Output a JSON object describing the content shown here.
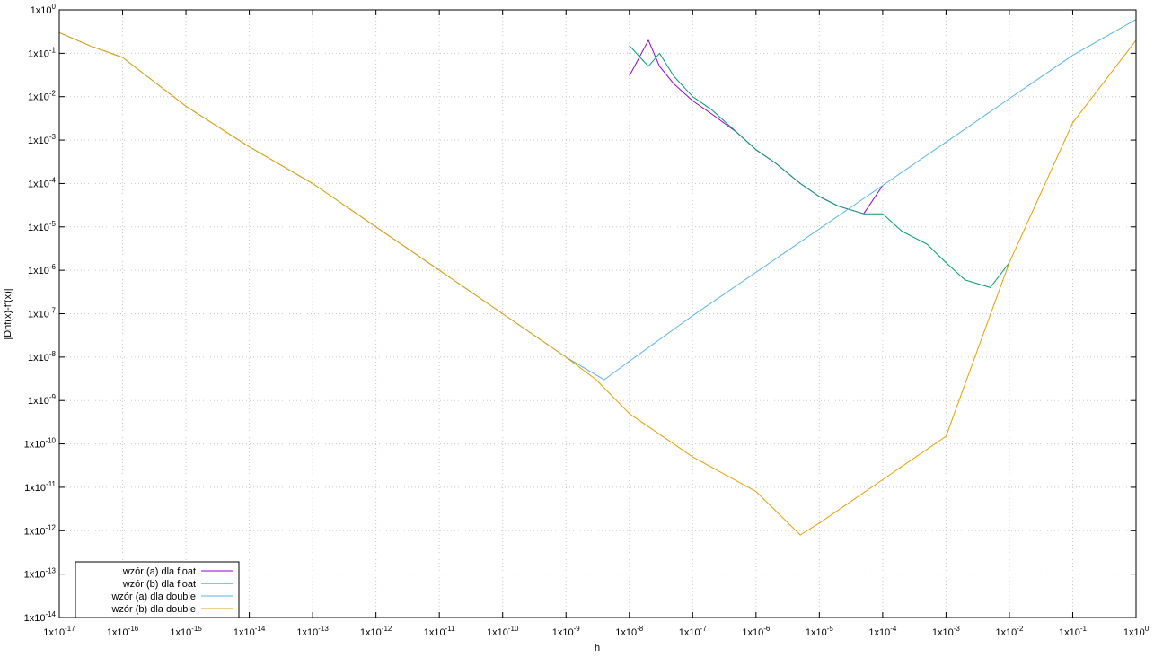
{
  "chart_data": {
    "type": "line",
    "title": "",
    "xlabel": "h",
    "ylabel": "|Dhf(x)-f'(x)|",
    "xscale": "log",
    "yscale": "log",
    "xlim": [
      1e-17,
      1
    ],
    "ylim": [
      1e-14,
      1
    ],
    "grid": true,
    "legend_position": "bottom-left",
    "x_ticks": [
      "1x10-17",
      "1x10-16",
      "1x10-15",
      "1x10-14",
      "1x10-13",
      "1x10-12",
      "1x10-11",
      "1x10-10",
      "1x10-9",
      "1x10-8",
      "1x10-7",
      "1x10-6",
      "1x10-5",
      "1x10-4",
      "1x10-3",
      "1x10-2",
      "1x10-1",
      "1x100"
    ],
    "y_ticks": [
      "1x100",
      "1x10-1",
      "1x10-2",
      "1x10-3",
      "1x10-4",
      "1x10-5",
      "1x10-6",
      "1x10-7",
      "1x10-8",
      "1x10-9",
      "1x10-10",
      "1x10-11",
      "1x10-12",
      "1x10-13",
      "1x10-14"
    ],
    "series": [
      {
        "name": "wzór (a) dla float",
        "color": "#9400d3",
        "x": [
          1e-08,
          2e-08,
          3e-08,
          5e-08,
          1e-07,
          2e-07,
          5e-07,
          1e-06,
          2e-06,
          5e-06,
          1e-05,
          2e-05,
          5e-05,
          0.0001
        ],
        "y": [
          0.03,
          0.2,
          0.05,
          0.02,
          0.008,
          0.004,
          0.0015,
          0.0006,
          0.0003,
          0.0001,
          5e-05,
          3e-05,
          2e-05,
          9e-05
        ]
      },
      {
        "name": "wzór (b) dla float",
        "color": "#009e73",
        "x": [
          1e-08,
          2e-08,
          3e-08,
          5e-08,
          1e-07,
          2e-07,
          5e-07,
          1e-06,
          2e-06,
          5e-06,
          1e-05,
          2e-05,
          5e-05,
          0.0001,
          0.0002,
          0.0005,
          0.001,
          0.002,
          0.005,
          0.01
        ],
        "y": [
          0.15,
          0.05,
          0.1,
          0.03,
          0.01,
          0.005,
          0.0015,
          0.0006,
          0.0003,
          0.0001,
          5e-05,
          3e-05,
          2e-05,
          2e-05,
          8e-06,
          4e-06,
          1.5e-06,
          6e-07,
          4e-07,
          1.5e-06
        ]
      },
      {
        "name": "wzór (a) dla double",
        "color": "#56b4e9",
        "x": [
          1e-17,
          3e-17,
          1e-16,
          1e-15,
          1e-14,
          1e-13,
          1e-12,
          1e-11,
          1e-10,
          1e-09,
          4e-09,
          1e-08,
          1e-07,
          1e-06,
          1e-05,
          0.0001,
          0.001,
          0.01,
          0.1,
          1
        ],
        "y": [
          0.3,
          0.15,
          0.08,
          0.006,
          0.0007,
          0.0001,
          1e-05,
          1e-06,
          1e-07,
          1e-08,
          3e-09,
          8e-09,
          9e-08,
          9e-07,
          9e-06,
          9e-05,
          0.0009,
          0.009,
          0.09,
          0.6
        ]
      },
      {
        "name": "wzór (b) dla double",
        "color": "#e69f00",
        "x": [
          1e-17,
          3e-17,
          1e-16,
          1e-15,
          1e-14,
          1e-13,
          1e-12,
          1e-11,
          1e-10,
          1e-09,
          3e-09,
          1e-08,
          1e-07,
          1e-06,
          5e-06,
          1e-05,
          0.0001,
          0.001,
          0.01,
          0.1,
          1
        ],
        "y": [
          0.3,
          0.15,
          0.08,
          0.006,
          0.0007,
          0.0001,
          1e-05,
          1e-06,
          1e-07,
          1e-08,
          3e-09,
          5e-10,
          5e-11,
          8e-12,
          8e-13,
          1.5e-12,
          1.5e-11,
          1.5e-10,
          1.5e-06,
          0.0025,
          0.2
        ]
      }
    ]
  }
}
